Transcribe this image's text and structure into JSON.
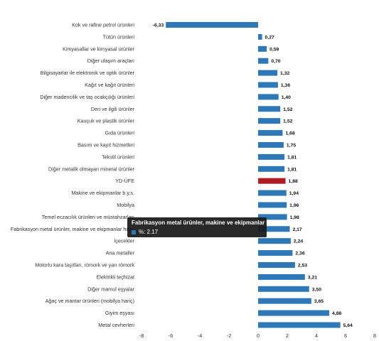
{
  "chart_data": {
    "type": "bar",
    "orientation": "horizontal",
    "categories": [
      "Kok ve rafine petrol ürünleri",
      "Tütün ürünleri",
      "Kimyasallar ve kimyasal ürünler",
      "Diğer ulaşım araçları",
      "Bilgisayarlar ile elektronik ve optik ürünler",
      "Kağıt ve kağıt ürünleri",
      "Diğer madencilik ve taş ocakçılığı ürünleri",
      "Deri ve ilgili ürünler",
      "Kauçuk ve plastik ürünler",
      "Gıda ürünleri",
      "Basım ve kayıt hizmetleri",
      "Tekstil ürünleri",
      "Diğer metalik olmayan mineral ürünler",
      "YD-ÜFE",
      "Makine ve ekipmanlar b.y.s.",
      "Mobilya",
      "Temel eczacılık ürünleri ve müstahzarları",
      "Fabrikasyon metal ürünler, makine ve ekipmanlar hariç",
      "İçecekler",
      "Ana metaller",
      "Motorlu kara taşıtları, römork ve yarı römork",
      "Elektrikli teçhizat",
      "Diğer mamul eşyalar",
      "Ağaç ve mantar ürünleri (mobilya hariç)",
      "Giyim eşyası",
      "Metal cevherleri"
    ],
    "values": [
      -6.33,
      0.27,
      0.59,
      0.7,
      1.32,
      1.36,
      1.4,
      1.52,
      1.52,
      1.68,
      1.75,
      1.81,
      1.81,
      1.88,
      1.94,
      1.96,
      1.98,
      2.17,
      2.24,
      2.36,
      2.53,
      3.21,
      3.5,
      3.65,
      4.88,
      5.64
    ],
    "value_labels": [
      "-6,33",
      "0,27",
      "0,59",
      "0,70",
      "1,32",
      "1,36",
      "1,40",
      "1,52",
      "1,52",
      "1,68",
      "1,75",
      "1,81",
      "1,81",
      "1,88",
      "1,94",
      "1,96",
      "1,98",
      "2,17",
      "2,24",
      "2,36",
      "2,53",
      "3,21",
      "3,50",
      "3,65",
      "4,88",
      "5,64"
    ],
    "highlight_category": "YD-ÜFE",
    "xlim": [
      -8,
      8
    ],
    "x_ticks": [
      -8,
      -6,
      -4,
      -2,
      0,
      2,
      4,
      6,
      8
    ],
    "x_tick_labels": [
      "-8",
      "-6",
      "-4",
      "-2",
      "0",
      "2",
      "4",
      "6",
      "8"
    ],
    "colors": {
      "bar": "#2e78b7",
      "highlight": "#b01e23"
    },
    "grid": false,
    "legend": "none"
  },
  "tooltip": {
    "title": "Fabrikasyon metal ürünler, makine ve ekipmanlar hariç",
    "value_text": "%: 2.17",
    "swatch_color": "#2e78b7"
  }
}
